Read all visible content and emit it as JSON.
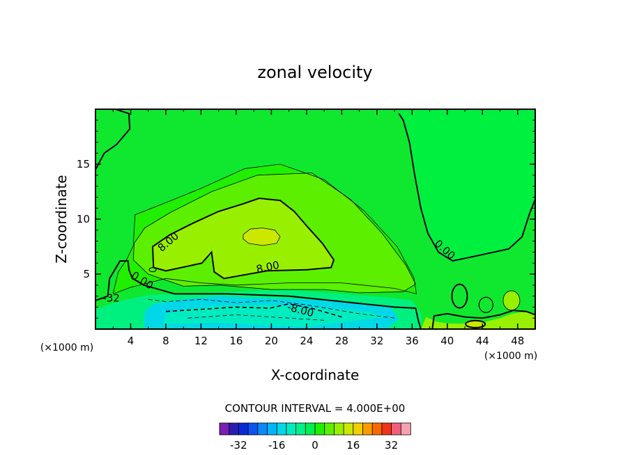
{
  "chart_data": {
    "type": "heatmap",
    "title": "zonal velocity",
    "xlabel": "X-coordinate",
    "ylabel": "Z-coordinate",
    "x_unit": "(×1000 m)",
    "x_unit_right": "(×1000 m)",
    "xlim": [
      0,
      50
    ],
    "ylim": [
      0,
      20
    ],
    "x_ticks": [
      "4",
      "8",
      "12",
      "16",
      "20",
      "24",
      "28",
      "32",
      "36",
      "40",
      "44",
      "48"
    ],
    "y_ticks": [
      "5",
      "10",
      "15"
    ],
    "contour_interval_label": "CONTOUR INTERVAL = 4.000E+00",
    "contour_labels": [
      {
        "text": "8.00",
        "x": 8.3,
        "z": 7.9,
        "rot": -40
      },
      {
        "text": "8.00",
        "x": 19.6,
        "z": 5.6,
        "rot": -12
      },
      {
        "text": "0.00",
        "x": 5.3,
        "z": 4.4,
        "rot": 32
      },
      {
        "text": "0.00",
        "x": 39.7,
        "z": 7.2,
        "rot": 42
      },
      {
        "text": "-8.00",
        "x": 23.3,
        "z": 1.7,
        "rot": 15
      },
      {
        "text": "-32",
        "x": 1.8,
        "z": 2.8,
        "rot": 0
      }
    ],
    "colorbar": {
      "levels": [
        -36,
        -32,
        -28,
        -24,
        -20,
        -16,
        -12,
        -8,
        -4,
        0,
        4,
        8,
        12,
        16,
        20,
        24,
        28,
        32,
        36
      ],
      "tick_labels": [
        "-32",
        "-16",
        "0",
        "16",
        "32"
      ],
      "tick_values": [
        -32,
        -16,
        0,
        16,
        32
      ],
      "colors": [
        "#7a1fb0",
        "#2a1bb0",
        "#0a2ad8",
        "#0a55f0",
        "#0a88f8",
        "#00b4f8",
        "#00d8e8",
        "#00ecc0",
        "#00f08a",
        "#00f050",
        "#20f000",
        "#5cf000",
        "#98f000",
        "#cce800",
        "#f0d000",
        "#f89c00",
        "#f86a00",
        "#f03418",
        "#f0607a",
        "#f8a0b0"
      ]
    },
    "fields": {
      "background_color": "#10e830",
      "right_region_color": "#00f040",
      "upper_band_color": "#20f000",
      "mid_band_color": "#5cf000",
      "core_band_color": "#98f000",
      "jet_max_color": "#cce800",
      "lower_layer_color": "#00f080",
      "negative_core_color": "#00d8e8",
      "deep_core_color": "#00ecc0"
    }
  }
}
